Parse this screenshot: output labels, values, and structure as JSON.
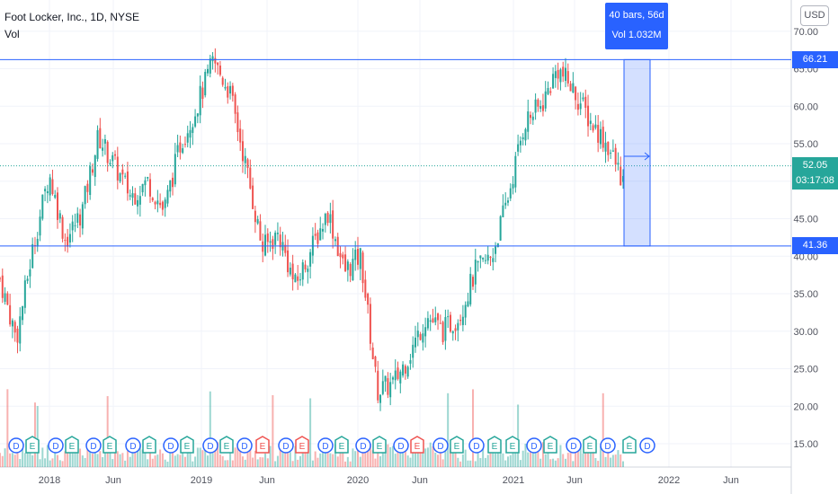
{
  "legend": {
    "title": "Foot Locker, Inc., 1D, NYSE",
    "vol": "Vol"
  },
  "currency_button": "USD",
  "price_axis": {
    "ticks": [
      "70.00",
      "65.00",
      "60.00",
      "55.00",
      "50.00",
      "45.00",
      "40.00",
      "35.00",
      "30.00",
      "25.00",
      "20.00",
      "15.00"
    ],
    "tick_values": [
      70,
      65,
      60,
      55,
      50,
      45,
      40,
      35,
      30,
      25,
      20,
      15
    ]
  },
  "time_axis": {
    "labels": [
      "2018",
      "Jun",
      "2019",
      "Jun",
      "2020",
      "Jun",
      "2021",
      "Jun",
      "2022",
      "Jun"
    ]
  },
  "horizontal_lines": {
    "upper": "66.21",
    "lower": "41.36"
  },
  "last_price": {
    "value": "52.05",
    "countdown": "03:17:08"
  },
  "measure_tooltip": {
    "bars": "40 bars, 56d",
    "volume": "Vol 1.032M"
  },
  "events": [
    "D",
    "E",
    "D",
    "E",
    "D",
    "E",
    "D",
    "E",
    "D",
    "E",
    "D",
    "E",
    "D",
    "E",
    "D",
    "E",
    "D",
    "E",
    "D",
    "E",
    "D",
    "E",
    "D",
    "E",
    "D",
    "E",
    "E",
    "D",
    "E",
    "D",
    "E",
    "D",
    "E",
    "D",
    "E",
    "D",
    "E",
    "D",
    "E",
    "D",
    "E"
  ],
  "colors": {
    "up": "#26a69a",
    "down": "#ef5350",
    "line": "#2962ff",
    "grid": "#f0f3fa",
    "text": "#131722"
  },
  "chart_data": {
    "type": "candlestick",
    "symbol": "Foot Locker, Inc., 1D, NYSE",
    "ylim": [
      13,
      73
    ],
    "x_labels": [
      "2018",
      "Jun",
      "2019",
      "Jun",
      "2020",
      "Jun",
      "2021",
      "Jun",
      "2022",
      "Jun"
    ],
    "approx_closing_path": [
      {
        "x": "2017-10",
        "y": 37
      },
      {
        "x": "2017-12",
        "y": 29
      },
      {
        "x": "2018-01",
        "y": 41
      },
      {
        "x": "2018-03",
        "y": 51
      },
      {
        "x": "2018-04",
        "y": 42
      },
      {
        "x": "2018-05",
        "y": 46
      },
      {
        "x": "2018-06",
        "y": 56
      },
      {
        "x": "2018-07",
        "y": 52
      },
      {
        "x": "2018-08",
        "y": 48
      },
      {
        "x": "2018-10",
        "y": 50
      },
      {
        "x": "2018-11",
        "y": 46
      },
      {
        "x": "2018-12",
        "y": 55
      },
      {
        "x": "2019-02",
        "y": 60
      },
      {
        "x": "2019-03",
        "y": 66
      },
      {
        "x": "2019-04",
        "y": 62
      },
      {
        "x": "2019-05",
        "y": 52
      },
      {
        "x": "2019-06",
        "y": 41
      },
      {
        "x": "2019-07",
        "y": 43
      },
      {
        "x": "2019-08",
        "y": 36
      },
      {
        "x": "2019-09",
        "y": 41
      },
      {
        "x": "2019-11",
        "y": 46
      },
      {
        "x": "2019-12",
        "y": 38
      },
      {
        "x": "2020-02",
        "y": 40
      },
      {
        "x": "2020-03",
        "y": 22
      },
      {
        "x": "2020-04",
        "y": 23
      },
      {
        "x": "2020-05",
        "y": 27
      },
      {
        "x": "2020-06",
        "y": 32
      },
      {
        "x": "2020-08",
        "y": 30
      },
      {
        "x": "2020-09",
        "y": 32
      },
      {
        "x": "2020-10",
        "y": 38
      },
      {
        "x": "2020-12",
        "y": 40
      },
      {
        "x": "2021-02",
        "y": 48
      },
      {
        "x": "2021-03",
        "y": 58
      },
      {
        "x": "2021-04",
        "y": 60
      },
      {
        "x": "2021-05",
        "y": 65
      },
      {
        "x": "2021-06",
        "y": 62
      },
      {
        "x": "2021-07",
        "y": 58
      },
      {
        "x": "2021-08",
        "y": 55
      },
      {
        "x": "2021-09",
        "y": 50
      }
    ],
    "levels": [
      66.21,
      41.36
    ],
    "last": 52.05,
    "measure": {
      "bars": 40,
      "days": 56,
      "volume": "1.032M"
    }
  }
}
